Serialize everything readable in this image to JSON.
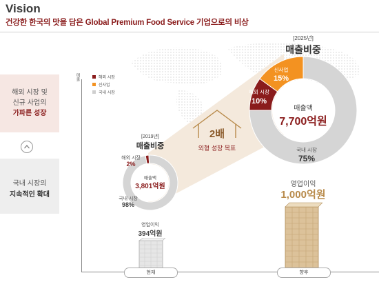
{
  "header": {
    "title": "Vision",
    "subtitle": "건강한 한국의 맛을 담은 Global Premium Food Service 기업으로의 비상"
  },
  "left_panel": {
    "box1": {
      "line1": "해외 시장 및",
      "line2": "신규 사업의",
      "line3": "가파른 성장"
    },
    "box2": {
      "line1": "국내 시장의",
      "line2": "지속적인 확대"
    }
  },
  "axis": {
    "y_label": "매출",
    "x_current": "현재",
    "x_future": "향후"
  },
  "legend": [
    {
      "label": "해외 시장",
      "color": "#8a1c1c"
    },
    {
      "label": "신사업",
      "color": "#f39221"
    },
    {
      "label": "국내 시장",
      "color": "#cfcfcf"
    }
  ],
  "chart_data": [
    {
      "type": "pie",
      "year_label": "[2019년]",
      "title": "매출비중",
      "center_label": "매출액",
      "center_value": "3,801억원",
      "categories": [
        "해외 시장",
        "국내 시장"
      ],
      "values": [
        2,
        98
      ],
      "value_labels": [
        "2%",
        "98%"
      ],
      "colors": [
        "#8a1c1c",
        "#d5d5d5"
      ]
    },
    {
      "type": "pie",
      "year_label": "[2025년]",
      "title": "매출비중",
      "center_label": "매출액",
      "center_value": "7,700억원",
      "categories": [
        "해외 시장",
        "신사업",
        "국내 시장"
      ],
      "values": [
        10,
        15,
        75
      ],
      "value_labels": [
        "10%",
        "15%",
        "75%"
      ],
      "colors": [
        "#8a1c1c",
        "#f39221",
        "#d5d5d5"
      ]
    }
  ],
  "growth": {
    "multiplier": "2배",
    "caption": "외형 성장 목표"
  },
  "op_income_current": {
    "label": "영업이익",
    "value": "394억원"
  },
  "op_income_future": {
    "label": "영업이익",
    "value": "1,000억원"
  },
  "colors": {
    "accent": "#8a1c1c",
    "orange": "#f39221",
    "gold": "#b88a4a"
  }
}
